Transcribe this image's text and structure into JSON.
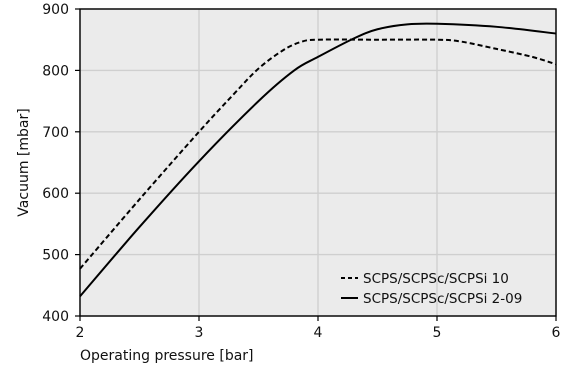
{
  "chart_data": {
    "type": "line",
    "title": "",
    "xlabel": "Operating pressure [bar]",
    "ylabel": "Vacuum [mbar]",
    "xlim": [
      2,
      6
    ],
    "ylim": [
      400,
      900
    ],
    "x_ticks": [
      2,
      3,
      4,
      5,
      6
    ],
    "y_ticks": [
      400,
      500,
      600,
      700,
      800,
      900
    ],
    "grid": true,
    "legend_position": "bottom-right",
    "background_color": "#ebebeb",
    "grid_color": "#cfcfcf",
    "series": [
      {
        "name": "SCPS/SCPSc/SCPSi 10",
        "style": "dashed",
        "color": "#000000",
        "points": [
          {
            "x": 2.0,
            "y": 477
          },
          {
            "x": 2.5,
            "y": 590
          },
          {
            "x": 3.0,
            "y": 700
          },
          {
            "x": 3.3,
            "y": 763
          },
          {
            "x": 3.5,
            "y": 803
          },
          {
            "x": 3.7,
            "y": 832
          },
          {
            "x": 3.85,
            "y": 846
          },
          {
            "x": 4.0,
            "y": 850
          },
          {
            "x": 4.5,
            "y": 850
          },
          {
            "x": 5.0,
            "y": 850
          },
          {
            "x": 5.2,
            "y": 847
          },
          {
            "x": 5.5,
            "y": 835
          },
          {
            "x": 5.8,
            "y": 822
          },
          {
            "x": 6.0,
            "y": 810
          }
        ]
      },
      {
        "name": "SCPS/SCPSc/SCPSi 2-09",
        "style": "solid",
        "color": "#000000",
        "points": [
          {
            "x": 2.0,
            "y": 432
          },
          {
            "x": 2.5,
            "y": 545
          },
          {
            "x": 3.0,
            "y": 652
          },
          {
            "x": 3.5,
            "y": 750
          },
          {
            "x": 3.8,
            "y": 800
          },
          {
            "x": 4.0,
            "y": 822
          },
          {
            "x": 4.3,
            "y": 852
          },
          {
            "x": 4.5,
            "y": 867
          },
          {
            "x": 4.75,
            "y": 875
          },
          {
            "x": 5.0,
            "y": 876
          },
          {
            "x": 5.5,
            "y": 871
          },
          {
            "x": 6.0,
            "y": 860
          }
        ]
      }
    ]
  }
}
